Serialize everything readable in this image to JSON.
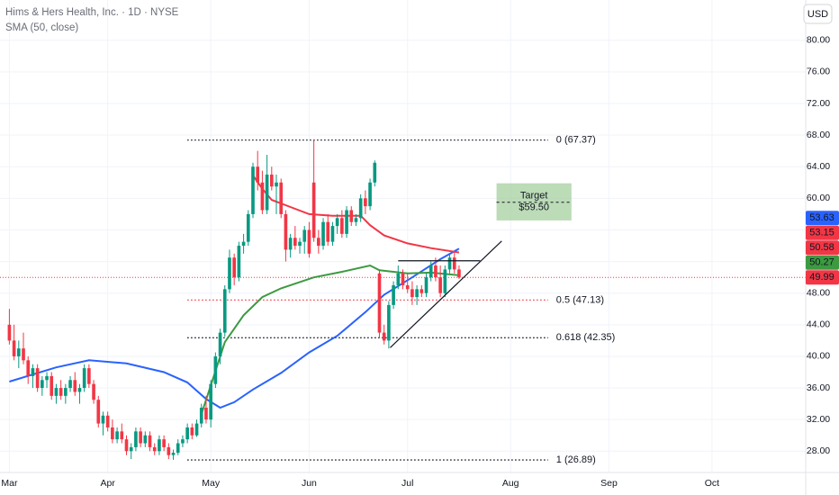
{
  "chart_data": {
    "type": "candlestick",
    "title": "Hims & Hers Health, Inc. · 1D · NYSE",
    "currency": "USD",
    "up_color": "#089981",
    "down_color": "#f23645",
    "open": [
      44,
      42,
      40,
      41,
      39.5,
      37.5,
      38.5,
      36,
      37,
      37.5,
      35,
      36,
      35,
      36,
      37,
      35.5,
      36,
      38.5,
      36.5,
      34.5,
      31.5,
      32.5,
      31,
      29.5,
      30.5,
      29.5,
      28,
      28.5,
      30.5,
      29,
      30,
      28.5,
      28,
      29.5,
      28.5,
      27.5,
      27.8,
      29,
      29.5,
      31,
      30,
      31.5,
      33.5,
      32,
      36.5,
      40,
      43,
      48.5,
      52.5,
      50,
      54,
      54.5,
      58,
      64,
      62,
      58.5,
      63,
      61.5,
      62,
      58,
      53.5,
      55,
      54,
      54.5,
      56,
      62,
      55,
      54,
      57,
      54.5,
      56.5,
      57.5,
      55.5,
      58.5,
      57,
      57.5,
      60,
      59,
      62,
      50.5,
      43,
      42,
      46.5,
      49,
      50.5,
      49,
      48.5,
      47.5,
      48.5,
      48,
      50,
      51.5,
      50,
      48,
      51,
      52.5,
      51
    ],
    "high": [
      46,
      44,
      42,
      43,
      40,
      39,
      39,
      37.5,
      38,
      38,
      36.5,
      37,
      36.5,
      37.5,
      38,
      36.5,
      39,
      39,
      37,
      35,
      33,
      33,
      32,
      31,
      31.5,
      30,
      29,
      31,
      31,
      30.5,
      30.5,
      29,
      30,
      30,
      29,
      28.2,
      29.5,
      30,
      31.5,
      31.5,
      32,
      34,
      35,
      37,
      40.5,
      43.5,
      49,
      53.5,
      53,
      54.5,
      55.5,
      58.5,
      64.5,
      66,
      63.5,
      65.5,
      64,
      63,
      62.5,
      58.5,
      55.5,
      56.5,
      55,
      56.5,
      57,
      67.37,
      56,
      57.5,
      58,
      57,
      58,
      58.5,
      59,
      59,
      58,
      60.5,
      61,
      62.5,
      64.8,
      51,
      44,
      47,
      49.5,
      51.5,
      51,
      50.5,
      49.5,
      49,
      49,
      50.5,
      52,
      52.5,
      51.5,
      51.5,
      53,
      53.15,
      51.5
    ],
    "low": [
      41.5,
      39.5,
      38.5,
      39,
      36.5,
      36,
      35.5,
      35,
      36,
      34.5,
      34,
      34.5,
      34,
      35.5,
      35,
      34,
      35.5,
      36,
      34,
      31,
      30,
      30.5,
      29,
      29,
      29,
      27.5,
      27,
      28,
      28.5,
      28.5,
      28,
      27.5,
      27.5,
      28,
      27,
      26.9,
      27.5,
      28.5,
      29,
      29.5,
      29.8,
      31,
      31.5,
      31,
      36,
      39,
      42.5,
      48,
      49,
      49.5,
      53,
      54,
      57.5,
      61,
      58,
      58,
      61,
      58,
      57.5,
      52,
      52.5,
      53.5,
      53,
      53,
      52.5,
      54.5,
      53,
      53.5,
      54,
      54,
      55.5,
      55,
      55,
      56.5,
      56.5,
      57,
      58,
      58.5,
      61.5,
      42.3,
      41.5,
      41,
      46,
      48.5,
      48.5,
      48,
      46.5,
      46.5,
      47.5,
      47.5,
      49.5,
      49.5,
      47.5,
      47.5,
      50.5,
      50.5,
      49.8
    ],
    "close": [
      42,
      40,
      41,
      39.5,
      37.5,
      38.5,
      36,
      37,
      37.5,
      35,
      36,
      35,
      36,
      37,
      35.5,
      36,
      38.5,
      36.5,
      34.5,
      31.5,
      32.5,
      31,
      29.5,
      30.5,
      29.5,
      28,
      28.5,
      30.5,
      29,
      30,
      28.5,
      28,
      29.5,
      28.5,
      27.5,
      27.8,
      29,
      29.5,
      31,
      30,
      31.5,
      33.5,
      32,
      36.5,
      40,
      43,
      48.5,
      52.5,
      50,
      54,
      54.5,
      58,
      64,
      62,
      58.5,
      63,
      61.5,
      62,
      58,
      53.5,
      55,
      54,
      54.5,
      56,
      53,
      55,
      54,
      57,
      54.5,
      56.5,
      57.5,
      55.5,
      58.5,
      57,
      57.5,
      60,
      59,
      62,
      64.5,
      43,
      42,
      46.5,
      49,
      50.5,
      49,
      48.5,
      47.5,
      48.5,
      48,
      50,
      51.5,
      50,
      48,
      51,
      52.5,
      51,
      49.99
    ],
    "lines": [
      {
        "name": "SMA (50, close)",
        "color": "#2962ff",
        "x": [
          0,
          10,
          17,
          25,
          33,
          38,
          42,
          45,
          48,
          52,
          58,
          64,
          70,
          76,
          80,
          86,
          92,
          96
        ],
        "values": [
          36.8,
          38.6,
          39.5,
          39.1,
          38,
          36.7,
          34.6,
          33.5,
          34.2,
          35.8,
          37.9,
          40.5,
          42.6,
          45.6,
          47.8,
          50,
          52.3,
          53.63
        ]
      },
      {
        "color": "#3c9a41",
        "x": [
          41,
          46,
          50,
          54,
          58,
          65,
          71,
          77,
          79,
          85,
          90,
          96
        ],
        "values": [
          32.7,
          41.8,
          45.2,
          47.5,
          48.6,
          50,
          50.7,
          51.5,
          50.9,
          50.5,
          50.6,
          50.27
        ]
      },
      {
        "color": "#f23645",
        "x": [
          52,
          54,
          56,
          60,
          64,
          69,
          75,
          77,
          80,
          85,
          90,
          96
        ],
        "values": [
          62.9,
          61.2,
          59.8,
          58.9,
          58,
          57.8,
          57.8,
          56.6,
          55.3,
          54.3,
          53.7,
          53.15
        ]
      }
    ],
    "xlim": [
      -2,
      170
    ],
    "xticks": [
      {
        "value": 0,
        "label": "Mar"
      },
      {
        "value": 21,
        "label": "Apr"
      },
      {
        "value": 43,
        "label": "May"
      },
      {
        "value": 64,
        "label": "Jun"
      },
      {
        "value": 85,
        "label": "Jul"
      },
      {
        "value": 107,
        "label": "Aug"
      },
      {
        "value": 128,
        "label": "Sep"
      },
      {
        "value": 150,
        "label": "Oct"
      }
    ],
    "ylim": [
      25.3,
      85.1
    ],
    "yticks": [
      {
        "value": 28,
        "label": "28.00"
      },
      {
        "value": 32,
        "label": "32.00"
      },
      {
        "value": 36,
        "label": "36.00"
      },
      {
        "value": 40,
        "label": "40.00"
      },
      {
        "value": 44,
        "label": "44.00"
      },
      {
        "value": 48,
        "label": "48.00"
      },
      {
        "value": 52,
        "label": "52.00"
      },
      {
        "value": 56,
        "label": "56.00"
      },
      {
        "value": 60,
        "label": "60.00"
      },
      {
        "value": 64,
        "label": "64.00"
      },
      {
        "value": 68,
        "label": "68.00"
      },
      {
        "value": 72,
        "label": "72.00"
      },
      {
        "value": 76,
        "label": "76.00"
      },
      {
        "value": 80,
        "label": "80.00"
      }
    ],
    "last_price": 49.99,
    "price_labels": [
      {
        "value": 53.63,
        "color": "#2962ff"
      },
      {
        "value": 53.15,
        "color": "#f23645"
      },
      {
        "value": 50.58,
        "color": "#f23645"
      },
      {
        "value": 50.27,
        "color": "#3c9a41"
      },
      {
        "value": 49.99,
        "color": "#f23645"
      }
    ],
    "levels_x": [
      38,
      115
    ],
    "levels": [
      {
        "value": 67.37,
        "label": "0 (67.37)",
        "color": "#131722"
      },
      {
        "value": 47.13,
        "label": "0.5 (47.13)",
        "color": "#f23645"
      },
      {
        "value": 42.35,
        "label": "0.618 (42.35)",
        "color": "#131722"
      },
      {
        "value": 26.89,
        "label": "1 (26.89)",
        "color": "#131722"
      }
    ],
    "target": {
      "label": "Target",
      "value": 59.5,
      "value_label": "$59.50",
      "x": [
        104,
        120
      ],
      "y": [
        57.2,
        61.9
      ],
      "color": "#a5cf9f"
    },
    "drawings": [
      {
        "x": [
          83,
          100.5
        ],
        "y": [
          52.1,
          52.1
        ]
      },
      {
        "x": [
          81.3,
          105.1
        ],
        "y": [
          41.1,
          54.6
        ]
      }
    ]
  }
}
